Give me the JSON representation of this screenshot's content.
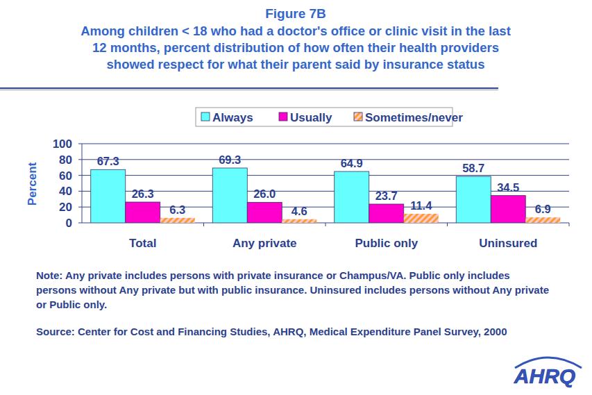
{
  "chart_data": {
    "type": "bar",
    "title": "Figure 7B",
    "subtitle": [
      "Among children < 18 who had a doctor's office or clinic visit in the last",
      "12 months, percent distribution of how often their health providers",
      "showed respect for what their parent said by insurance status"
    ],
    "y_label": "Percent",
    "categories": [
      "Total",
      "Any private",
      "Public only",
      "Uninsured"
    ],
    "series": [
      {
        "name": "Always",
        "color": "#66ffff",
        "values": [
          67.3,
          69.3,
          64.9,
          58.7
        ]
      },
      {
        "name": "Usually",
        "color": "#ff00cc",
        "values": [
          26.3,
          26.0,
          23.7,
          34.5
        ],
        "value_labels": [
          "26.3",
          "26.0",
          "23.7",
          "34.5"
        ]
      },
      {
        "name": "Sometimes/never",
        "color": "#ff9933",
        "values": [
          6.3,
          4.6,
          11.4,
          6.9
        ]
      }
    ],
    "ylim": [
      0,
      100
    ],
    "yticks": [
      0,
      20,
      40,
      60,
      80,
      100
    ],
    "grid": true,
    "legend": "top",
    "data_labels": true,
    "annotations": [
      "Note: Any private includes persons with private insurance or Champus/VA.  Public only includes persons without Any private but with public insurance. Uninsured includes persons without Any private or Public only.",
      "Source: Center for Cost and Financing Studies, AHRQ, Medical Expenditure Panel Survey, 2000",
      "AHRQ"
    ]
  }
}
